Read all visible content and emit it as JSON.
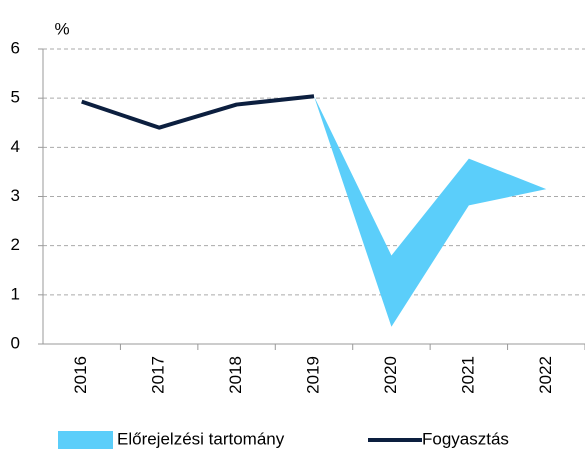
{
  "chart_data": {
    "type": "line",
    "y_unit": "%",
    "categories": [
      "2016",
      "2017",
      "2018",
      "2019",
      "2020",
      "2021",
      "2022"
    ],
    "ylim": [
      0,
      6
    ],
    "yticks": [
      0,
      1,
      2,
      3,
      4,
      5,
      6
    ],
    "grid": true,
    "series": [
      {
        "name": "Előrejelzési tartomány",
        "color": "#5bcefa",
        "kind": "range",
        "low": [
          null,
          null,
          null,
          5.04,
          0.35,
          2.82,
          3.15
        ],
        "high": [
          null,
          null,
          null,
          5.04,
          1.8,
          3.77,
          3.15
        ]
      },
      {
        "name": "Fogyasztás",
        "color": "#0c1f3f",
        "kind": "line",
        "values": [
          4.93,
          4.4,
          4.87,
          5.04,
          null,
          null,
          null
        ]
      }
    ]
  }
}
